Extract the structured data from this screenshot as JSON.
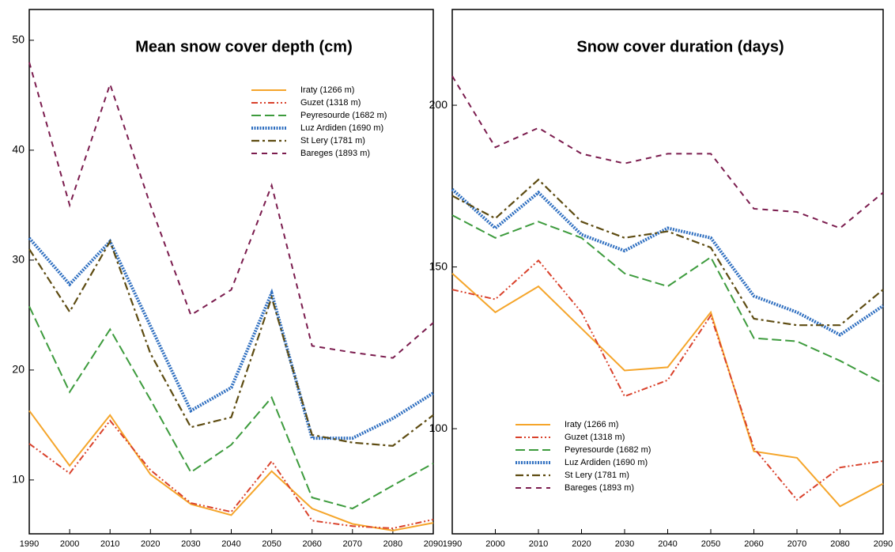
{
  "chart_data": [
    {
      "type": "line",
      "title": "Mean snow cover depth (cm)",
      "x": [
        1990,
        2000,
        2010,
        2020,
        2030,
        2040,
        2050,
        2060,
        2070,
        2080,
        2090
      ],
      "xlim": [
        1990,
        2090
      ],
      "xticks": [
        1990,
        2000,
        2010,
        2020,
        2030,
        2040,
        2050,
        2060,
        2070,
        2080,
        2090
      ],
      "ylim": [
        5.1,
        52.8
      ],
      "yticks": [
        10,
        20,
        30,
        40,
        50
      ],
      "legend": "upper right",
      "series": [
        {
          "name": "Iraty (1266 m)",
          "color": "#f5a52a",
          "style": "solid",
          "values": [
            16.3,
            11.3,
            15.9,
            10.5,
            7.8,
            6.8,
            10.8,
            7.4,
            6.0,
            5.4,
            6.1
          ]
        },
        {
          "name": "Guzet (1318 m)",
          "color": "#d9412b",
          "style": "dash-dot-dot",
          "values": [
            13.3,
            10.6,
            15.4,
            10.9,
            7.9,
            7.1,
            11.7,
            6.3,
            5.8,
            5.6,
            6.4
          ]
        },
        {
          "name": "Peyresourde (1682 m)",
          "color": "#3d9b3d",
          "style": "long-dash",
          "values": [
            25.8,
            18.0,
            23.7,
            17.3,
            10.7,
            13.2,
            17.5,
            8.4,
            7.4,
            9.5,
            11.5
          ]
        },
        {
          "name": "Luz Ardiden (1690 m)",
          "color": "#2f6fc0",
          "style": "dotted",
          "values": [
            32.0,
            27.8,
            31.7,
            24.0,
            16.3,
            18.4,
            27.0,
            13.8,
            13.8,
            15.6,
            17.9
          ]
        },
        {
          "name": "St Lery (1781 m)",
          "color": "#5e4c12",
          "style": "dash-dot",
          "values": [
            31.0,
            25.3,
            31.7,
            21.5,
            14.8,
            15.7,
            26.6,
            14.1,
            13.4,
            13.1,
            15.9
          ]
        },
        {
          "name": "Bareges (1893 m)",
          "color": "#7b1c4e",
          "style": "dashed",
          "values": [
            48.0,
            35.0,
            46.0,
            35.0,
            25.0,
            27.3,
            36.8,
            22.2,
            21.6,
            21.1,
            24.3
          ]
        }
      ]
    },
    {
      "type": "line",
      "title": "Snow cover duration (days)",
      "x": [
        1990,
        2000,
        2010,
        2020,
        2030,
        2040,
        2050,
        2060,
        2070,
        2080,
        2090
      ],
      "xlim": [
        1990,
        2090
      ],
      "xticks": [
        1990,
        2000,
        2010,
        2020,
        2030,
        2040,
        2050,
        2060,
        2070,
        2080,
        2090
      ],
      "ylim": [
        67.5,
        229.6
      ],
      "yticks": [
        100,
        150,
        200
      ],
      "legend": "lower left",
      "series": [
        {
          "name": "Iraty (1266 m)",
          "color": "#f5a52a",
          "style": "solid",
          "values": [
            148,
            136,
            144,
            131,
            118,
            119,
            136,
            93,
            91,
            76,
            83
          ]
        },
        {
          "name": "Guzet (1318 m)",
          "color": "#d9412b",
          "style": "dash-dot-dot",
          "values": [
            143,
            140,
            152,
            136,
            110,
            115,
            135,
            94,
            78,
            88,
            90
          ]
        },
        {
          "name": "Peyresourde (1682 m)",
          "color": "#3d9b3d",
          "style": "long-dash",
          "values": [
            166,
            159,
            164,
            159,
            148,
            144,
            153,
            128,
            127,
            121,
            114
          ]
        },
        {
          "name": "Luz Ardiden (1690 m)",
          "color": "#2f6fc0",
          "style": "dotted",
          "values": [
            174,
            162,
            173,
            160,
            155,
            162,
            159,
            141,
            136,
            129,
            138
          ]
        },
        {
          "name": "St Lery (1781 m)",
          "color": "#5e4c12",
          "style": "dash-dot",
          "values": [
            172,
            165,
            177,
            164,
            159,
            161,
            156,
            134,
            132,
            132,
            143
          ]
        },
        {
          "name": "Bareges (1893 m)",
          "color": "#7b1c4e",
          "style": "dashed",
          "values": [
            209,
            187,
            193,
            185,
            182,
            185,
            185,
            168,
            167,
            162,
            173
          ]
        }
      ]
    }
  ]
}
